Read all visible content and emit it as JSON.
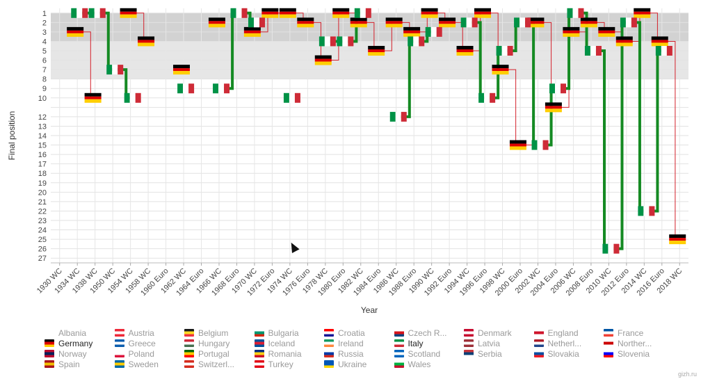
{
  "chart_data": {
    "type": "line",
    "xlabel": "Year",
    "ylabel": "Final position",
    "categories": [
      "1930 WC",
      "1934 WC",
      "1938 WC",
      "1950 WC",
      "1954 WC",
      "1958 WC",
      "1960 Euro",
      "1962 WC",
      "1964 Euro",
      "1966 WC",
      "1968 Euro",
      "1970 WC",
      "1972 Euro",
      "1974 WC",
      "1976 Euro",
      "1978 WC",
      "1980 Euro",
      "1982 WC",
      "1984 Euro",
      "1986 WC",
      "1988 Euro",
      "1990 WC",
      "1992 Euro",
      "1994 WC",
      "1996 Euro",
      "1998 WC",
      "2000 Euro",
      "2002 WC",
      "2004 Euro",
      "2006 WC",
      "2008 Euro",
      "2010 WC",
      "2012 Euro",
      "2014 WC",
      "2016 Euro",
      "2018 WC"
    ],
    "yticks": [
      "1",
      "2",
      "3",
      "4",
      "5",
      "6",
      "7",
      "8",
      "9",
      "10",
      "12",
      "13",
      "14",
      "15",
      "16",
      "17",
      "18",
      "19",
      "20",
      "21",
      "22",
      "23",
      "24",
      "25",
      "26",
      "27"
    ],
    "ylim": [
      1,
      27
    ],
    "bands": [
      {
        "from": 1,
        "to": 4,
        "color": "#d2d2d2"
      },
      {
        "from": 4,
        "to": 8,
        "color": "#e6e6e6"
      }
    ],
    "series": [
      {
        "name": "Germany",
        "color": "#d4202b",
        "width": 1,
        "values": [
          null,
          3,
          10,
          null,
          1,
          4,
          null,
          7,
          null,
          2,
          null,
          3,
          1,
          1,
          2,
          6,
          1,
          2,
          5,
          2,
          3,
          1,
          2,
          5,
          1,
          7,
          15,
          2,
          11,
          3,
          2,
          3,
          4,
          1,
          4,
          25
        ]
      },
      {
        "name": "Italy",
        "color": "#158a23",
        "width": 4,
        "values": [
          null,
          1,
          1,
          7,
          10,
          null,
          null,
          9,
          null,
          9,
          1,
          2,
          null,
          10,
          null,
          4,
          4,
          1,
          null,
          12,
          4,
          3,
          null,
          2,
          10,
          5,
          2,
          15,
          9,
          1,
          5,
          26,
          2,
          22,
          5,
          null
        ]
      }
    ]
  },
  "legend": {
    "items": [
      {
        "name": "Albania",
        "colors": [
          "#e41e20",
          "#1a1a1a"
        ],
        "active": false
      },
      {
        "name": "Austria",
        "colors": [
          "#ed2939",
          "#ffffff",
          "#ed2939"
        ],
        "active": false
      },
      {
        "name": "Belgium",
        "colors": [
          "#1a1a1a",
          "#fdda24",
          "#ef3340"
        ],
        "active": false
      },
      {
        "name": "Bulgaria",
        "colors": [
          "#ffffff",
          "#00966e",
          "#d62612"
        ],
        "active": false
      },
      {
        "name": "Croatia",
        "colors": [
          "#ff0000",
          "#ffffff",
          "#171796"
        ],
        "active": false
      },
      {
        "name": "Czech R...",
        "colors": [
          "#ffffff",
          "#d7141a",
          "#11457e"
        ],
        "active": false
      },
      {
        "name": "Denmark",
        "colors": [
          "#c60c30",
          "#ffffff",
          "#c60c30"
        ],
        "active": false
      },
      {
        "name": "England",
        "colors": [
          "#ffffff",
          "#cf142b",
          "#ffffff"
        ],
        "active": false
      },
      {
        "name": "France",
        "colors": [
          "#0055a4",
          "#ffffff",
          "#ef4135"
        ],
        "active": false
      },
      {
        "name": "Germany",
        "colors": [
          "#000000",
          "#dd0000",
          "#ffce00"
        ],
        "active": true
      },
      {
        "name": "Greece",
        "colors": [
          "#0d5eaf",
          "#ffffff",
          "#0d5eaf"
        ],
        "active": false
      },
      {
        "name": "Hungary",
        "colors": [
          "#ce2939",
          "#ffffff",
          "#477050"
        ],
        "active": false
      },
      {
        "name": "Iceland",
        "colors": [
          "#02529c",
          "#dc1e35",
          "#02529c"
        ],
        "active": false
      },
      {
        "name": "Ireland",
        "colors": [
          "#169b62",
          "#ffffff",
          "#ff883e"
        ],
        "active": false
      },
      {
        "name": "Italy",
        "colors": [
          "#009246",
          "#ffffff",
          "#ce2b37"
        ],
        "active": true
      },
      {
        "name": "Latvia",
        "colors": [
          "#9e3039",
          "#ffffff",
          "#9e3039"
        ],
        "active": false
      },
      {
        "name": "Netherl...",
        "colors": [
          "#ae1c28",
          "#ffffff",
          "#21468b"
        ],
        "active": false
      },
      {
        "name": "Norther...",
        "colors": [
          "#ffffff",
          "#cc0000",
          "#ffffff"
        ],
        "active": false
      },
      {
        "name": "Norway",
        "colors": [
          "#ba0c2f",
          "#00205b",
          "#ba0c2f"
        ],
        "active": false
      },
      {
        "name": "Poland",
        "colors": [
          "#ffffff",
          "#ffffff",
          "#dc143c"
        ],
        "active": false
      },
      {
        "name": "Portugal",
        "colors": [
          "#006600",
          "#ffcc00",
          "#ff0000"
        ],
        "active": false
      },
      {
        "name": "Romania",
        "colors": [
          "#002b7f",
          "#fcd116",
          "#ce1126"
        ],
        "active": false
      },
      {
        "name": "Russia",
        "colors": [
          "#ffffff",
          "#0039a6",
          "#d52b1e"
        ],
        "active": false
      },
      {
        "name": "Scotland",
        "colors": [
          "#0065bd",
          "#ffffff",
          "#0065bd"
        ],
        "active": false
      },
      {
        "name": "Serbia",
        "colors": [
          "#c6363c",
          "#0c4076",
          "#ffffff"
        ],
        "active": false
      },
      {
        "name": "Slovakia",
        "colors": [
          "#ffffff",
          "#0b4ea2",
          "#ee1c25"
        ],
        "active": false
      },
      {
        "name": "Slovenia",
        "colors": [
          "#ffffff",
          "#0000ff",
          "#ff0000"
        ],
        "active": false
      },
      {
        "name": "Spain",
        "colors": [
          "#aa151b",
          "#f1bf00",
          "#aa151b"
        ],
        "active": false
      },
      {
        "name": "Sweden",
        "colors": [
          "#006aa7",
          "#fecc00",
          "#006aa7"
        ],
        "active": false
      },
      {
        "name": "Switzerl...",
        "colors": [
          "#d52b1e",
          "#ffffff",
          "#d52b1e"
        ],
        "active": false
      },
      {
        "name": "Turkey",
        "colors": [
          "#e30a17",
          "#ffffff",
          "#e30a17"
        ],
        "active": false
      },
      {
        "name": "Ukraine",
        "colors": [
          "#0057b7",
          "#0057b7",
          "#ffd700"
        ],
        "active": false
      },
      {
        "name": "Wales",
        "colors": [
          "#ffffff",
          "#00b140",
          "#c8102e"
        ],
        "active": false
      }
    ]
  },
  "credit": "gizh.ru"
}
